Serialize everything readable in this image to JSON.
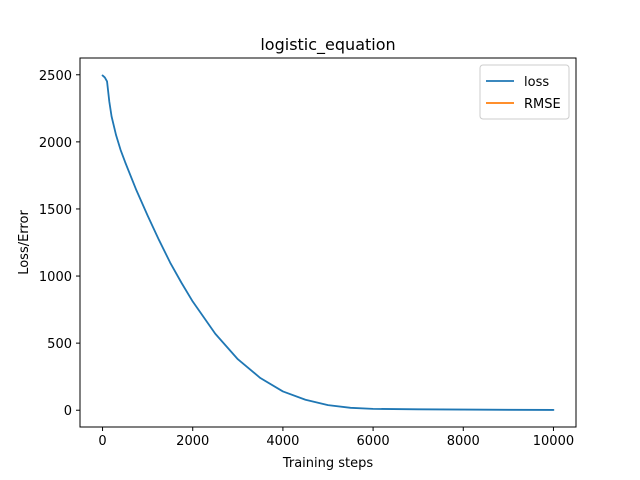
{
  "chart_data": {
    "type": "line",
    "title": "logistic_equation",
    "xlabel": "Training steps",
    "ylabel": "Loss/Error",
    "xlim": [
      -500,
      10500
    ],
    "ylim": [
      -125,
      2625
    ],
    "xticks": [
      0,
      2000,
      4000,
      6000,
      8000,
      10000
    ],
    "xtick_labels": [
      "0",
      "2000",
      "4000",
      "6000",
      "8000",
      "10000"
    ],
    "yticks": [
      0,
      500,
      1000,
      1500,
      2000,
      2500
    ],
    "ytick_labels": [
      "0",
      "500",
      "1000",
      "1500",
      "2000",
      "2500"
    ],
    "grid": false,
    "legend_position": "top-right",
    "series": [
      {
        "name": "loss",
        "color": "#1f77b4",
        "x": [
          0,
          50,
          100,
          150,
          200,
          300,
          400,
          500,
          750,
          1000,
          1250,
          1500,
          1750,
          2000,
          2500,
          3000,
          3500,
          4000,
          4500,
          5000,
          5500,
          6000,
          7000,
          8000,
          9000,
          10000
        ],
        "y": [
          2495,
          2480,
          2450,
          2300,
          2190,
          2050,
          1940,
          1850,
          1640,
          1450,
          1270,
          1100,
          950,
          810,
          570,
          380,
          240,
          140,
          78,
          38,
          18,
          10,
          7,
          5,
          3,
          2
        ]
      },
      {
        "name": "RMSE",
        "color": "#ff7f0e",
        "x": [],
        "y": []
      }
    ]
  }
}
